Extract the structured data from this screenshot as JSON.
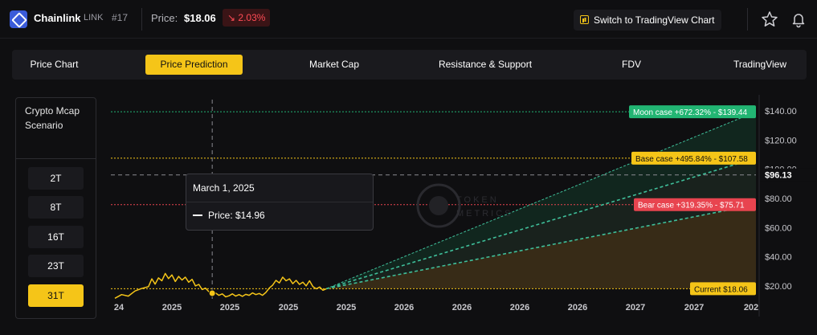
{
  "header": {
    "coin_name": "Chainlink",
    "ticker": "LINK",
    "rank": "#17",
    "price_label": "Price:",
    "price_value": "$18.06",
    "change": "↘ 2.03%",
    "tv_button_label": "Switch to TradingView Chart"
  },
  "tabs": [
    {
      "label": "Price Chart",
      "active": false
    },
    {
      "label": "Price Prediction",
      "active": true
    },
    {
      "label": "Market Cap",
      "active": false
    },
    {
      "label": "Resistance & Support",
      "active": false
    },
    {
      "label": "FDV",
      "active": false
    },
    {
      "label": "TradingView",
      "active": false
    }
  ],
  "scenario": {
    "title": "Crypto Mcap Scenario",
    "buttons": [
      {
        "label": "2T",
        "active": false
      },
      {
        "label": "8T",
        "active": false
      },
      {
        "label": "16T",
        "active": false
      },
      {
        "label": "23T",
        "active": false
      },
      {
        "label": "31T",
        "active": true
      }
    ]
  },
  "tooltip": {
    "date": "March 1, 2025",
    "price_text": "Price: $14.96"
  },
  "colors": {
    "accent": "#f5c518",
    "moon": "#22b573",
    "base": "#f5c518",
    "bear": "#e8444f",
    "negative": "#ff4b55"
  },
  "chart_data": {
    "type": "line",
    "watermark": "TOKEN METRICS",
    "ylim": [
      10,
      145
    ],
    "y_ticks": [
      20,
      40,
      60,
      80,
      100,
      120,
      140
    ],
    "y_tick_labels": [
      "$20.00",
      "$40.00",
      "$60.00",
      "$80.00",
      "$100.00",
      "$120.00",
      "$140.00"
    ],
    "x_tick_labels": [
      "24",
      "2025",
      "2025",
      "2025",
      "2025",
      "2026",
      "2026",
      "2026",
      "2026",
      "2027",
      "2027",
      "202"
    ],
    "crosshair_price": 96.13,
    "crosshair_label": "$96.13",
    "current_price": 18.06,
    "current_label": "Current $18.06",
    "scenarios": [
      {
        "name": "Moon case",
        "label": "Moon case +672.32% - $139.44",
        "value": 139.44,
        "pct": 672.32
      },
      {
        "name": "Base case",
        "label": "Base case +495.84% - $107.58",
        "value": 107.58,
        "pct": 495.84
      },
      {
        "name": "Bear case",
        "label": "Bear case +319.35% - $75.71",
        "value": 75.71,
        "pct": 319.35
      }
    ],
    "history": [
      {
        "x": 0,
        "y": 11.5
      },
      {
        "x": 2,
        "y": 14.0
      },
      {
        "x": 4,
        "y": 13.0
      },
      {
        "x": 6,
        "y": 16.5
      },
      {
        "x": 8,
        "y": 18.2
      },
      {
        "x": 10,
        "y": 19.5
      },
      {
        "x": 11,
        "y": 24.8
      },
      {
        "x": 12,
        "y": 21.2
      },
      {
        "x": 13,
        "y": 25.5
      },
      {
        "x": 14,
        "y": 23.5
      },
      {
        "x": 15,
        "y": 28.5
      },
      {
        "x": 16,
        "y": 25.0
      },
      {
        "x": 17,
        "y": 27.5
      },
      {
        "x": 18,
        "y": 23.0
      },
      {
        "x": 19,
        "y": 26.5
      },
      {
        "x": 20,
        "y": 24.0
      },
      {
        "x": 21,
        "y": 26.0
      },
      {
        "x": 22,
        "y": 22.5
      },
      {
        "x": 23,
        "y": 24.5
      },
      {
        "x": 24,
        "y": 20.0
      },
      {
        "x": 25,
        "y": 21.0
      },
      {
        "x": 26,
        "y": 17.5
      },
      {
        "x": 27,
        "y": 18.5
      },
      {
        "x": 28,
        "y": 16.0
      },
      {
        "x": 29,
        "y": 14.96
      },
      {
        "x": 30,
        "y": 15.2
      },
      {
        "x": 31,
        "y": 13.5
      },
      {
        "x": 32,
        "y": 14.5
      },
      {
        "x": 33,
        "y": 12.5
      },
      {
        "x": 34,
        "y": 13.2
      },
      {
        "x": 35,
        "y": 14.5
      },
      {
        "x": 36,
        "y": 13.0
      },
      {
        "x": 37,
        "y": 14.0
      },
      {
        "x": 38,
        "y": 12.8
      },
      {
        "x": 39,
        "y": 14.2
      },
      {
        "x": 40,
        "y": 13.5
      },
      {
        "x": 41,
        "y": 15.2
      },
      {
        "x": 42,
        "y": 14.0
      },
      {
        "x": 43,
        "y": 14.8
      },
      {
        "x": 44,
        "y": 13.5
      },
      {
        "x": 45,
        "y": 15.5
      },
      {
        "x": 46,
        "y": 18.5
      },
      {
        "x": 47,
        "y": 20.5
      },
      {
        "x": 48,
        "y": 23.8
      },
      {
        "x": 49,
        "y": 22.0
      },
      {
        "x": 50,
        "y": 26.0
      },
      {
        "x": 51,
        "y": 23.5
      },
      {
        "x": 52,
        "y": 24.8
      },
      {
        "x": 53,
        "y": 21.5
      },
      {
        "x": 54,
        "y": 23.8
      },
      {
        "x": 55,
        "y": 21.0
      },
      {
        "x": 56,
        "y": 22.5
      },
      {
        "x": 57,
        "y": 20.0
      },
      {
        "x": 58,
        "y": 23.5
      },
      {
        "x": 59,
        "y": 19.5
      },
      {
        "x": 60,
        "y": 18.0
      },
      {
        "x": 61,
        "y": 19.2
      },
      {
        "x": 62,
        "y": 17.0
      },
      {
        "x": 63,
        "y": 18.06
      }
    ],
    "x_max": 191
  }
}
